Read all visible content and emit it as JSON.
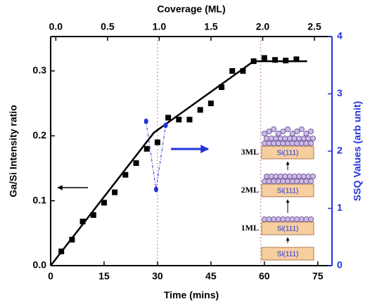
{
  "chart_data": {
    "type": "scatter",
    "xlabel": "Time (mins)",
    "x2label": "Coverage (ML)",
    "ylabel": "Ga/Si Intensity ratio",
    "y2label": "SSQ Values (arb unit)",
    "xlim": [
      0,
      79
    ],
    "xticks": [
      0,
      15,
      30,
      45,
      60,
      75
    ],
    "x2lim": [
      -0.05,
      2.67
    ],
    "x2ticks": [
      {
        "value": 0,
        "label": "0.0"
      },
      0.5,
      {
        "value": 1,
        "label": "1.0"
      },
      1.5,
      {
        "value": 2,
        "label": "2.0"
      },
      2.5
    ],
    "ylim": [
      0,
      0.353
    ],
    "yticks": [
      {
        "value": 0,
        "label": "0.0"
      },
      0.1,
      0.2,
      0.3
    ],
    "y2lim": [
      0,
      4
    ],
    "y2ticks": [
      0,
      1,
      2,
      3,
      4
    ],
    "x": [
      3,
      6,
      9,
      12,
      15,
      18,
      21,
      24,
      27,
      30,
      33,
      36,
      39,
      42,
      45,
      48,
      51,
      54,
      57,
      60,
      63,
      66,
      69
    ],
    "series": [
      {
        "color": "#000000",
        "values": [
          0.022,
          0.04,
          0.068,
          0.078,
          0.097,
          0.113,
          0.14,
          0.158,
          0.18,
          0.19,
          0.228,
          0.225,
          0.225,
          0.24,
          0.25,
          0.275,
          0.3,
          0.3,
          0.315,
          0.32,
          0.317,
          0.316,
          0.318
        ]
      }
    ],
    "fit": {
      "color": "#000000",
      "x": [
        0,
        29,
        57,
        72
      ],
      "values": [
        0,
        0.205,
        0.315,
        0.315
      ]
    },
    "ssq": {
      "color": "#2233dd",
      "axis": "y2",
      "x": [
        26.8,
        29.6,
        32.3
      ],
      "values": [
        2.52,
        1.33,
        2.45
      ]
    },
    "vlines": [
      30,
      59
    ],
    "inset": [
      {
        "label": "3ML",
        "substrate": "Si(111)"
      },
      {
        "label": "2ML",
        "substrate": "Si(111)"
      },
      {
        "label": "1ML",
        "substrate": "Si(111)"
      },
      {
        "substrate": "Si(111)"
      }
    ]
  }
}
